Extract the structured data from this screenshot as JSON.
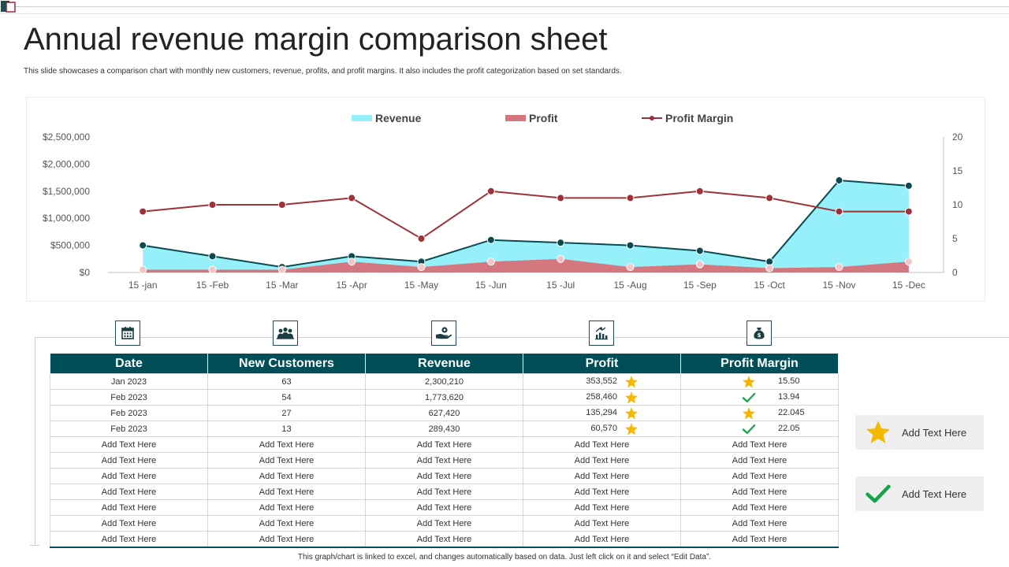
{
  "header": {
    "title": "Annual revenue margin comparison sheet",
    "subtitle": "This slide showcases a comparison chart with monthly new customers, revenue, profits, and profit margins. It also includes the profit categorization based on set standards."
  },
  "chart_data": {
    "type": "area",
    "title": "",
    "xlabel": "",
    "ylabel": "",
    "categories": [
      "15 -jan",
      "15 -Feb",
      "15 -Mar",
      "15 -Apr",
      "15 -May",
      "15 -Jun",
      "15 -Jul",
      "15 -Aug",
      "15 -Sep",
      "15 -Oct",
      "15 -Nov",
      "15 -Dec"
    ],
    "series": [
      {
        "name": "Revenue",
        "kind": "area",
        "axis": "left",
        "color": "#95f0fa",
        "line_color": "#0c4a50",
        "values": [
          500000,
          300000,
          100000,
          300000,
          200000,
          600000,
          550000,
          500000,
          400000,
          200000,
          1700000,
          1600000
        ]
      },
      {
        "name": "Profit",
        "kind": "area",
        "axis": "left",
        "color": "#d4777f",
        "marker_color": "#f2c4c8",
        "values": [
          50000,
          50000,
          50000,
          200000,
          100000,
          200000,
          250000,
          100000,
          150000,
          80000,
          100000,
          200000
        ]
      },
      {
        "name": "Profit Margin",
        "kind": "line",
        "axis": "right",
        "color": "#9e3238",
        "values": [
          9,
          10,
          10,
          11,
          5,
          12,
          11,
          11,
          12,
          11,
          9,
          9
        ]
      }
    ],
    "y_left": {
      "min": 0,
      "max": 2500000,
      "ticks": [
        "$0",
        "$500,000",
        "$1,000,000",
        "$1,500,000",
        "$2,000,000",
        "$2,500,000"
      ]
    },
    "y_right": {
      "min": 0,
      "max": 20,
      "ticks": [
        "0",
        "5",
        "10",
        "15",
        "20"
      ]
    },
    "legend_position": "top",
    "grid": false
  },
  "table": {
    "headers": [
      "Date",
      "New Customers",
      "Revenue",
      "Profit",
      "Profit Margin"
    ],
    "header_icons": [
      "calendar-icon",
      "customers-icon",
      "revenue-hand-icon",
      "profit-chart-icon",
      "money-bag-icon"
    ],
    "rows": [
      [
        "Jan 2023",
        "63",
        "2,300,210",
        "353,552",
        "15.50"
      ],
      [
        "Feb 2023",
        "54",
        "1,773,620",
        "258,460",
        "13.94"
      ],
      [
        "Feb 2023",
        "27",
        "627,420",
        "135,294",
        "22.045"
      ],
      [
        "Feb 2023",
        "13",
        "289,430",
        "60,570",
        "22.05"
      ],
      [
        "Add Text Here",
        "Add Text Here",
        "Add Text Here",
        "Add Text Here",
        "Add Text Here"
      ],
      [
        "Add Text Here",
        "Add Text Here",
        "Add Text Here",
        "Add Text Here",
        "Add Text Here"
      ],
      [
        "Add Text Here",
        "Add Text Here",
        "Add Text Here",
        "Add Text Here",
        "Add Text Here"
      ],
      [
        "Add Text Here",
        "Add Text Here",
        "Add Text Here",
        "Add Text Here",
        "Add Text Here"
      ],
      [
        "Add Text Here",
        "Add Text Here",
        "Add Text Here",
        "Add Text Here",
        "Add Text Here"
      ],
      [
        "Add Text Here",
        "Add Text Here",
        "Add Text Here",
        "Add Text Here",
        "Add Text Here"
      ],
      [
        "Add Text Here",
        "Add Text Here",
        "Add Text Here",
        "Add Text Here",
        "Add Text Here"
      ]
    ],
    "profit_symbols": [
      "star",
      "star",
      "star",
      "star"
    ],
    "margin_symbols": [
      "star",
      "check",
      "star",
      "check"
    ]
  },
  "legend_cards": [
    {
      "symbol": "star",
      "label": "Add Text Here"
    },
    {
      "symbol": "check",
      "label": "Add Text Here"
    }
  ],
  "colors": {
    "header_bg": "#004e57",
    "star": "#f5b800",
    "check": "#17a34a"
  },
  "footer": {
    "note": "This graph/chart is linked to excel, and changes automatically based on data. Just left click on it and select “Edit Data”."
  }
}
